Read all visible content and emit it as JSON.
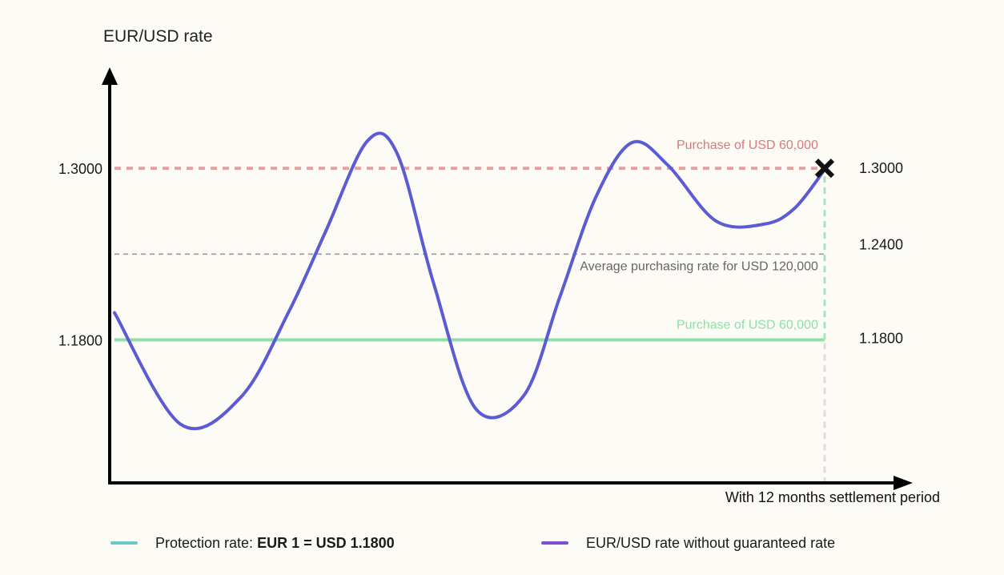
{
  "chart_data": {
    "type": "line",
    "ylabel": "EUR/USD rate",
    "xlabel": "With 12 months settlement period",
    "ylim": [
      1.08,
      1.36
    ],
    "xlim": [
      0,
      12
    ],
    "y_ticks_left": [
      "1.3000",
      "1.1800"
    ],
    "y_tick_values_left": [
      1.3,
      1.18
    ],
    "y_ticks_right": [
      "1.3000",
      "1.2400",
      "1.1800"
    ],
    "y_tick_values_right": [
      1.3,
      1.24,
      1.18
    ],
    "series": [
      {
        "name": "EUR/USD rate without guaranteed rate",
        "color": "#5b5bd3",
        "x": [
          0,
          1.1,
          2.1,
          2.9,
          3.5,
          4.2,
          4.7,
          5.3,
          6.0,
          6.8,
          7.4,
          8.0,
          8.6,
          9.2,
          10.0,
          10.8,
          11.3,
          11.8
        ],
        "y": [
          1.199,
          1.121,
          1.14,
          1.2,
          1.255,
          1.319,
          1.31,
          1.22,
          1.132,
          1.141,
          1.21,
          1.28,
          1.318,
          1.302,
          1.263,
          1.261,
          1.272,
          1.299
        ]
      },
      {
        "name": "Protection rate: EUR 1 = USD 1.1800",
        "color": "#8fe0a8",
        "x": [
          0,
          11.8
        ],
        "y": [
          1.18,
          1.18
        ]
      }
    ],
    "reference_lines": [
      {
        "y": 1.3,
        "color": "#e8a0a0",
        "style": "dashed",
        "label": "Purchase of USD 60,000",
        "label_color": "#d97a7a"
      },
      {
        "y": 1.24,
        "color": "#999999",
        "style": "dashed",
        "label": "Average purchasing rate for USD 120,000",
        "label_color": "#666666"
      },
      {
        "y": 1.18,
        "color": "#8fe0a8",
        "style": "solid",
        "label": "Purchase of USD 60,000",
        "label_color": "#8fe0a8"
      }
    ],
    "marker": {
      "x": 11.8,
      "y": 1.3,
      "symbol": "x"
    },
    "grid": false,
    "legend_position": "bottom"
  },
  "legend": {
    "protection_prefix": "Protection rate: ",
    "protection_bold": "EUR 1 = USD 1.1800",
    "protection_color": "#6cc7c7",
    "spot": "EUR/USD rate without guaranteed rate",
    "spot_color": "#7c4fd6"
  }
}
